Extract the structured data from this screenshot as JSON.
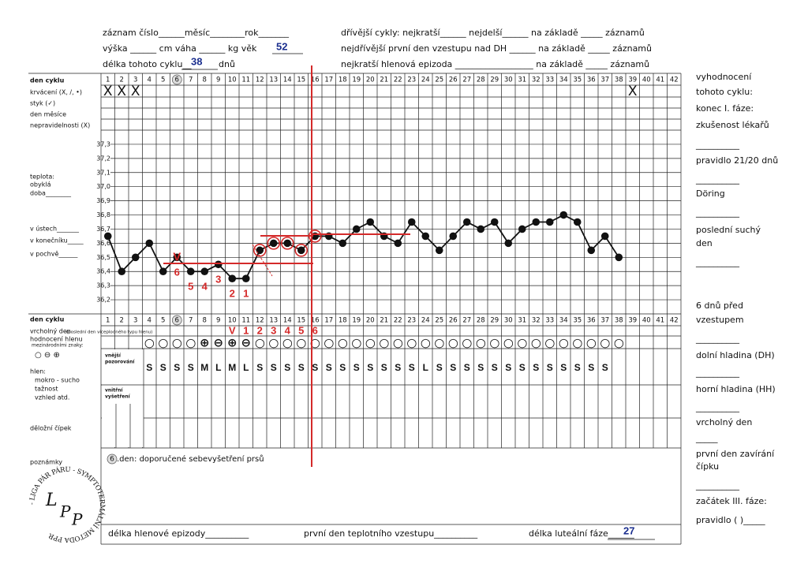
{
  "header": {
    "record": "záznam číslo______měsíc________rok_______",
    "body": "výška ______ cm   váha ______ kg   věk",
    "age": 52,
    "cycle_length_label": "délka tohoto cyklu__",
    "cycle_length": 38,
    "cycle_length_unit": "dnů",
    "previous_cycles": "dřívější cykly: nejkratší______ nejdelší______ na základě _____ záznamů",
    "earliest_rise": "nejdřívější první den vzestupu nad DH ______ na základě _____ záznamů",
    "shortest_episode": "nejkratší hlenová epizoda __________________ na základě _____ záznamů"
  },
  "top_labels": [
    "den cyklu",
    "krvácení (X, /, •)",
    "styk (✓)",
    "den měsíce",
    "nepravidelnosti (X)"
  ],
  "temp_labels": [
    "teplota:",
    "obyklá",
    "doba________",
    "v ústech_______",
    "v konečníku_____",
    "v pochvě______"
  ],
  "days": [
    1,
    2,
    3,
    4,
    5,
    6,
    7,
    8,
    9,
    10,
    11,
    12,
    13,
    14,
    15,
    16,
    17,
    18,
    19,
    20,
    21,
    22,
    23,
    24,
    25,
    26,
    27,
    28,
    29,
    30,
    31,
    32,
    33,
    34,
    35,
    36,
    37,
    38,
    39,
    40,
    41,
    42
  ],
  "circled_day": 6,
  "bleeding": [
    "X",
    "X",
    "X",
    null,
    null,
    null,
    null,
    null,
    null,
    null,
    null,
    null,
    null,
    null,
    null,
    null,
    null,
    null,
    null,
    null,
    null,
    null,
    null,
    null,
    null,
    null,
    null,
    null,
    null,
    null,
    null,
    null,
    null,
    null,
    null,
    null,
    null,
    null,
    "X",
    null,
    null,
    null
  ],
  "chart_data": {
    "type": "line",
    "x": [
      1,
      2,
      3,
      4,
      5,
      6,
      7,
      8,
      9,
      10,
      11,
      12,
      13,
      14,
      15,
      16,
      17,
      18,
      19,
      20,
      21,
      22,
      23,
      24,
      25,
      26,
      27,
      28,
      29,
      30,
      31,
      32,
      33,
      34,
      35,
      36,
      37,
      38
    ],
    "values": [
      36.65,
      36.4,
      36.5,
      36.6,
      36.4,
      36.5,
      36.4,
      36.4,
      36.45,
      36.35,
      36.35,
      36.55,
      36.6,
      36.6,
      36.55,
      36.65,
      36.65,
      36.6,
      36.7,
      36.75,
      36.65,
      36.6,
      36.75,
      36.65,
      36.55,
      36.65,
      36.75,
      36.7,
      36.75,
      36.6,
      36.7,
      36.75,
      36.75,
      36.8,
      36.75,
      36.55,
      36.65,
      36.5
    ],
    "color": "#111111",
    "xlim": [
      0.5,
      42.5
    ],
    "ylim": [
      36.1,
      37.4
    ],
    "yticks": [
      {
        "value": 36.2,
        "label": "36,2"
      },
      {
        "value": 36.3,
        "label": "36,3"
      },
      {
        "value": 36.4,
        "label": "36,4"
      },
      {
        "value": 36.5,
        "label": "36,5"
      },
      {
        "value": 36.6,
        "label": "36,6"
      },
      {
        "value": 36.7,
        "label": "36,7"
      },
      {
        "value": 36.8,
        "label": "36,8"
      },
      {
        "value": 36.9,
        "label": "36,9"
      },
      {
        "value": 37.0,
        "label": "37,0"
      },
      {
        "value": 37.1,
        "label": "37,1"
      },
      {
        "value": 37.2,
        "label": "37,2"
      },
      {
        "value": 37.3,
        "label": "37,3"
      }
    ],
    "grid": true,
    "circled_points": [
      12,
      13,
      14,
      15,
      16
    ],
    "circle_color": "#d42a2a",
    "point_marks": [
      {
        "text": "V",
        "x": 6
      }
    ],
    "count_labels": [
      {
        "text": "6",
        "x": 6
      },
      {
        "text": "5",
        "x": 7
      },
      {
        "text": "4",
        "x": 8
      },
      {
        "text": "3",
        "x": 9
      },
      {
        "text": "2",
        "x": 10
      },
      {
        "text": "1",
        "x": 11
      }
    ]
  },
  "bottom_labels": {
    "day": "den cyklu",
    "peak": "vrcholný den",
    "peak_note": "(poslední den víceplodného typu hlenu)",
    "mucus_eval": "hodnocení hlenu",
    "intl": "mezinárodními znaky:",
    "symbols": "○ ⊖ ⊕",
    "mucus": "hlen:",
    "wet": "mokro - sucho",
    "stretch": "tažnost",
    "look": "vzhled atd.",
    "outer1": "vnější",
    "outer2": "pozorování",
    "inner1": "vnitřní",
    "inner2": "vyšetření",
    "cervix": "děložní čípek",
    "notes": "poznámky"
  },
  "peak_day": [
    null,
    null,
    null,
    null,
    null,
    null,
    null,
    null,
    null,
    "V",
    "1",
    "2",
    "3",
    "4",
    "5",
    "6",
    null,
    null,
    null,
    null,
    null,
    null,
    null,
    null,
    null,
    null,
    null,
    null,
    null,
    null,
    null,
    null,
    null,
    null,
    null,
    null,
    null,
    null,
    null,
    null,
    null,
    null
  ],
  "mucus_signs": [
    null,
    null,
    null,
    "○",
    "○",
    "○",
    "○",
    "⊕",
    "⊖",
    "⊕",
    "⊖",
    "○",
    "○",
    "○",
    "○",
    "○",
    "○",
    "○",
    "○",
    "○",
    "○",
    "○",
    "○",
    "○",
    "○",
    "○",
    "○",
    "○",
    "○",
    "○",
    "○",
    "○",
    "○",
    "○",
    "○",
    "○",
    "○",
    "○",
    null,
    null,
    null,
    null
  ],
  "mucus_desc": [
    null,
    null,
    null,
    "S",
    "S",
    "S",
    "S",
    "M",
    "L",
    "M",
    "L",
    "S",
    "S",
    "S",
    "S",
    "S",
    "S",
    "S",
    "S",
    "S",
    "S",
    "S",
    "S",
    "L",
    "S",
    "S",
    "S",
    "S",
    "S",
    "S",
    "S",
    "S",
    "S",
    "S",
    "S",
    "S",
    "S",
    null,
    null,
    null,
    null,
    null
  ],
  "notes": {
    "day": 6,
    "text": ".den: doporučené sebevyšetření prsů"
  },
  "footer": {
    "mucus_episode": "délka hlenové epizody__________",
    "first_rise": "první den teplotního vzestupu__________",
    "luteal_label": "délka luteální fáze______",
    "luteal": 27
  },
  "right_column": [
    "vyhodnocení",
    "tohoto cyklu:",
    "konec I. fáze:",
    "zkušenost lékařů",
    "__________",
    "pravidlo 21/20 dnů",
    "__________",
    "Döring",
    "__________",
    "poslední suchý",
    "den",
    "__________",
    "6 dnů před",
    "vzestupem",
    "__________",
    "dolní hladina (DH)",
    "__________",
    "horní hladina (HH)",
    "__________",
    "vrcholný den",
    "_____",
    "první den zavírání",
    "čípku",
    "__________",
    "začátek III. fáze:",
    "pravidlo (  )_____"
  ],
  "logo": {
    "ring": "- LIGA PÁR PÁRU - SYMPTOTERMÁLNÍ METODA PPR",
    "letters": [
      "L",
      "P",
      "P"
    ]
  }
}
